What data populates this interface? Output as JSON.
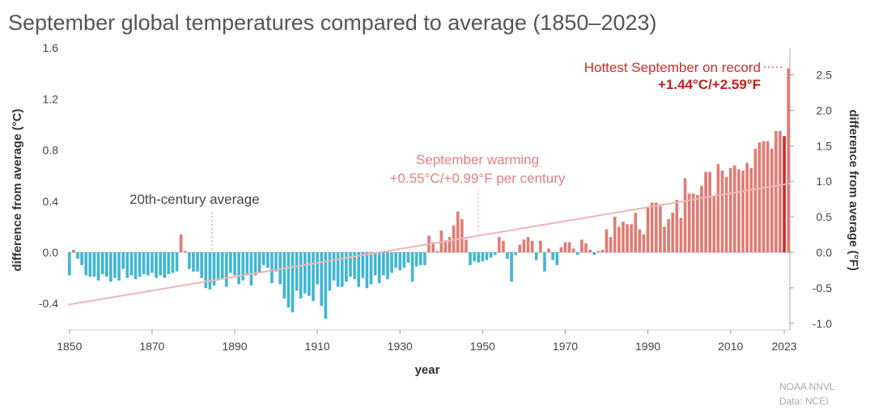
{
  "chart_data": {
    "type": "bar",
    "title": "September global temperatures compared to average (1850–2023)",
    "xlabel": "year",
    "ylabel_left": "difference from average (°C)",
    "ylabel_right": "difference from average (°F)",
    "xlim": [
      1850,
      2023
    ],
    "ylim_c": [
      -0.6,
      1.6
    ],
    "yticks_c": [
      "1.6",
      "1.2",
      "0.8",
      "0.4",
      "0.0",
      "-0.4"
    ],
    "yticks_f": [
      "2.5",
      "2.0",
      "1.5",
      "1.0",
      "0.5",
      "0.0",
      "-0.5",
      "-1.0"
    ],
    "xticks": [
      "1850",
      "1870",
      "1890",
      "1910",
      "1930",
      "1950",
      "1970",
      "1990",
      "2010",
      "2023"
    ],
    "baseline_label": "20th-century average",
    "trend": {
      "line1": "September warming",
      "line2": "+0.55°C/+0.99°F per century",
      "start_value_c": -0.41,
      "end_value_c": 0.54
    },
    "record": {
      "line1": "Hottest September on record",
      "line2": "+1.44°C/+2.59°F",
      "year": 2023,
      "value_c": 1.44
    },
    "colors": {
      "positive": "#e27a72",
      "negative": "#3fb5d4",
      "record": "#d0252b",
      "trend": "#efb5b5"
    },
    "start_year": 1850,
    "values": [
      -0.18,
      0.02,
      -0.05,
      -0.1,
      -0.18,
      -0.19,
      -0.19,
      -0.22,
      -0.17,
      -0.19,
      -0.23,
      -0.2,
      -0.22,
      -0.13,
      -0.2,
      -0.18,
      -0.21,
      -0.19,
      -0.17,
      -0.18,
      -0.16,
      -0.2,
      -0.18,
      -0.2,
      -0.17,
      -0.16,
      -0.15,
      0.14,
      0.01,
      -0.13,
      -0.15,
      -0.15,
      -0.2,
      -0.28,
      -0.29,
      -0.26,
      -0.22,
      -0.21,
      -0.27,
      -0.16,
      -0.18,
      -0.25,
      -0.22,
      -0.18,
      -0.26,
      -0.18,
      -0.16,
      -0.1,
      -0.12,
      -0.24,
      -0.15,
      -0.25,
      -0.36,
      -0.43,
      -0.47,
      -0.3,
      -0.36,
      -0.32,
      -0.34,
      -0.38,
      -0.25,
      -0.42,
      -0.52,
      -0.3,
      -0.22,
      -0.27,
      -0.27,
      -0.23,
      -0.19,
      -0.21,
      -0.27,
      -0.2,
      -0.28,
      -0.25,
      -0.18,
      -0.24,
      -0.18,
      -0.21,
      -0.16,
      -0.12,
      -0.14,
      -0.12,
      -0.08,
      -0.23,
      -0.11,
      -0.1,
      -0.1,
      0.13,
      0.08,
      0.01,
      0.17,
      0.09,
      0.12,
      0.21,
      0.32,
      0.26,
      0.1,
      -0.1,
      -0.07,
      -0.08,
      -0.07,
      -0.06,
      -0.04,
      -0.02,
      0.12,
      0.09,
      -0.05,
      -0.23,
      -0.02,
      0.06,
      0.1,
      0.12,
      0.09,
      -0.06,
      0.09,
      -0.15,
      0.03,
      -0.06,
      -0.1,
      0.04,
      0.08,
      0.08,
      0.03,
      -0.02,
      0.1,
      0.07,
      0.02,
      -0.02,
      0.01,
      0.02,
      0.18,
      0.12,
      0.28,
      0.2,
      0.24,
      0.22,
      0.22,
      0.31,
      0.18,
      0.14,
      0.36,
      0.39,
      0.39,
      0.36,
      0.2,
      0.26,
      0.31,
      0.41,
      0.27,
      0.58,
      0.46,
      0.46,
      0.45,
      0.52,
      0.63,
      0.63,
      0.44,
      0.69,
      0.64,
      0.59,
      0.66,
      0.68,
      0.65,
      0.64,
      0.7,
      0.66,
      0.81,
      0.86,
      0.87,
      0.87,
      0.81,
      0.95,
      0.95,
      0.91,
      1.44
    ]
  },
  "credits": {
    "line1": "NOAA NNVL",
    "line2": "Data: NCEI"
  }
}
